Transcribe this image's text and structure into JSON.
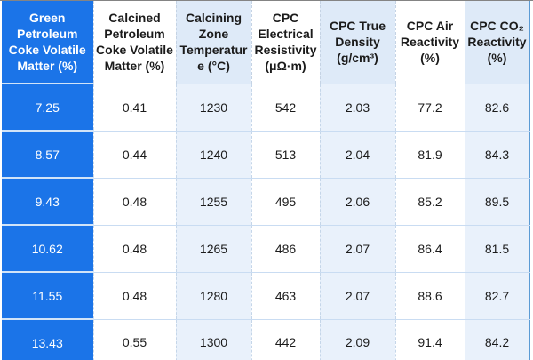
{
  "colors": {
    "column_blue": "#1B74E8",
    "header_alt_fill": "#DEEAF8",
    "data_alt_fill": "#E9F1FB",
    "grid_line_blue": "#C9DCF2",
    "outer_border_blue": "#5B9BD5",
    "top_edge_gray": "#848484"
  },
  "table": {
    "columns": [
      {
        "label": "Green\nPetroleum\nCoke Volatile\nMatter (%)"
      },
      {
        "label": "Calcined\nPetroleum\nCoke Volatile\nMatter (%)"
      },
      {
        "label": "Calcining\nZone\nTemperatur\ne (°C)"
      },
      {
        "label": "CPC\nElectrical\nResistivity\n(μΩ·m)"
      },
      {
        "label": "CPC True\nDensity\n(g/cm³)"
      },
      {
        "label": "CPC Air\nReactivity\n(%)"
      },
      {
        "label": "CPC CO₂\nReactivity\n(%)"
      }
    ],
    "rows": [
      [
        "7.25",
        "0.41",
        "1230",
        "542",
        "2.03",
        "77.2",
        "82.6"
      ],
      [
        "8.57",
        "0.44",
        "1240",
        "513",
        "2.04",
        "81.9",
        "84.3"
      ],
      [
        "9.43",
        "0.48",
        "1255",
        "495",
        "2.06",
        "85.2",
        "89.5"
      ],
      [
        "10.62",
        "0.48",
        "1265",
        "486",
        "2.07",
        "86.4",
        "81.5"
      ],
      [
        "11.55",
        "0.48",
        "1280",
        "463",
        "2.07",
        "88.6",
        "82.7"
      ],
      [
        "13.43",
        "0.55",
        "1300",
        "442",
        "2.09",
        "91.4",
        "84.2"
      ]
    ]
  }
}
